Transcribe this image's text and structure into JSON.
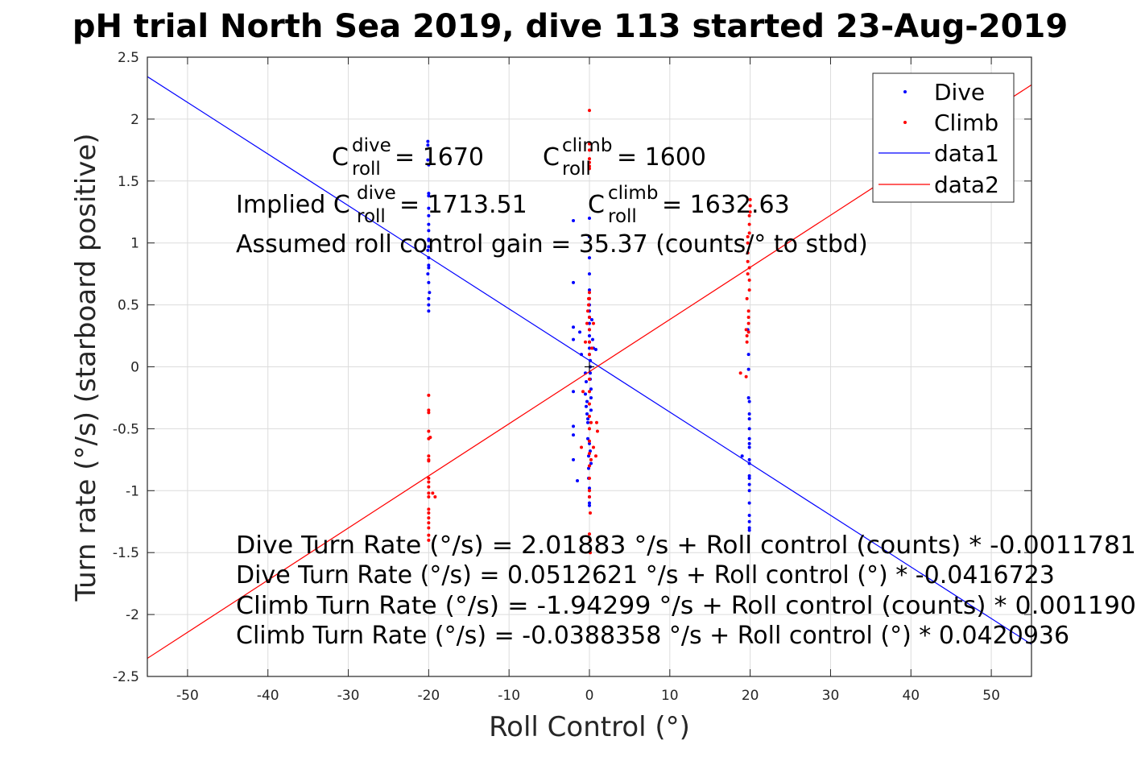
{
  "chart_data": {
    "type": "scatter",
    "title": "pH trial North Sea 2019, dive 113 started 23-Aug-2019",
    "xlabel": "Roll Control (°)",
    "ylabel": "Turn rate (°/s) (starboard positive)",
    "xlim": [
      -55,
      55
    ],
    "ylim": [
      -2.5,
      2.5
    ],
    "xticks": [
      -50,
      -40,
      -30,
      -20,
      -10,
      0,
      10,
      20,
      30,
      40,
      50
    ],
    "yticks": [
      -2.5,
      -2,
      -1.5,
      -1,
      -0.5,
      0,
      0.5,
      1,
      1.5,
      2,
      2.5
    ],
    "grid": true,
    "legend": {
      "placement": "top-right",
      "entries": [
        "Dive",
        "Climb",
        "data1",
        "data2"
      ]
    },
    "colors": {
      "dive": "#0000ff",
      "climb": "#ff0000",
      "axis": "#262626",
      "grid": "#dcdcdc"
    },
    "series": [
      {
        "name": "Dive",
        "marker": "point",
        "color": "#0000ff",
        "x": [
          -20.1,
          -20.1,
          -20.1,
          -20.0,
          -20.0,
          -20.0,
          -20.0,
          -20.0,
          -20.0,
          -20.0,
          -20.0,
          -20.0,
          -20.1,
          -20.0,
          -20.0,
          -20.1,
          -20.0,
          -19.9,
          -20.0,
          -20.0,
          -20.0,
          -20.0,
          -20.0,
          -2.0,
          -2.0,
          -2.0,
          -2.0,
          -2.0,
          -2.0,
          -2.0,
          -2.0,
          -1.5,
          -1.2,
          -1.0,
          -0.5,
          -0.4,
          -0.3,
          -0.2,
          -0.2,
          -0.1,
          -0.1,
          -0.1,
          0.0,
          0.0,
          0.0,
          0.0,
          0.0,
          0.0,
          0.0,
          0.0,
          0.0,
          0.0,
          0.0,
          0.0,
          0.0,
          0.0,
          0.0,
          0.0,
          0.0,
          0.0,
          0.0,
          0.1,
          0.1,
          0.1,
          0.1,
          0.2,
          0.2,
          0.2,
          0.3,
          0.4,
          0.5,
          0.8,
          -0.5,
          -0.4,
          -0.3,
          -0.2,
          0.0,
          0.1,
          0.2,
          19.0,
          19.7,
          19.8,
          19.8,
          19.8,
          19.9,
          19.9,
          19.9,
          19.9,
          19.9,
          19.9,
          19.9,
          19.9,
          19.9,
          19.9,
          19.9,
          19.9,
          19.9,
          19.9,
          19.9,
          19.9,
          19.9,
          19.9
        ],
        "y": [
          1.82,
          1.79,
          1.67,
          1.63,
          1.4,
          1.38,
          1.28,
          1.22,
          1.15,
          1.1,
          1.03,
          0.97,
          0.94,
          0.88,
          0.82,
          0.75,
          0.68,
          0.6,
          0.55,
          0.5,
          0.45,
          1.02,
          0.8,
          1.18,
          0.68,
          0.32,
          0.22,
          -0.2,
          -0.48,
          -0.55,
          -0.75,
          -0.92,
          0.28,
          0.1,
          -0.22,
          -0.32,
          -0.38,
          -0.45,
          -0.58,
          -0.72,
          -0.82,
          -0.9,
          -0.98,
          -1.05,
          -1.1,
          -1.12,
          1.2,
          1.05,
          0.88,
          0.75,
          0.62,
          0.55,
          0.5,
          0.45,
          0.4,
          0.35,
          0.3,
          0.25,
          0.2,
          0.15,
          0.1,
          0.05,
          0.0,
          -0.05,
          -0.1,
          -0.18,
          -0.25,
          -0.35,
          0.38,
          0.22,
          0.15,
          0.14,
          -0.05,
          -0.12,
          -0.28,
          -0.42,
          -0.62,
          -0.68,
          -0.78,
          -0.72,
          0.3,
          0.1,
          -0.02,
          -0.25,
          -0.28,
          -0.38,
          -0.42,
          -0.5,
          -0.58,
          -0.62,
          -0.65,
          -0.75,
          -0.78,
          -0.88,
          -0.9,
          -0.95,
          -1.0,
          -1.25,
          -1.3,
          -1.1,
          -1.32,
          -1.2
        ]
      },
      {
        "name": "Climb",
        "marker": "point",
        "color": "#ff0000",
        "x": [
          -20.0,
          -20.0,
          -20.0,
          -20.0,
          -20.0,
          -20.0,
          -20.0,
          -20.0,
          -20.0,
          -20.0,
          -20.0,
          -20.0,
          -20.0,
          -20.0,
          -20.0,
          -20.0,
          -20.0,
          -20.0,
          -20.0,
          -20.0,
          -19.8,
          -19.5,
          -19.2,
          -1.0,
          -0.8,
          -0.5,
          -0.3,
          -0.2,
          -0.1,
          -0.1,
          0.0,
          0.0,
          0.0,
          0.0,
          0.0,
          0.0,
          0.0,
          0.0,
          0.0,
          0.0,
          0.0,
          0.0,
          0.0,
          0.0,
          0.0,
          0.0,
          0.0,
          0.0,
          0.0,
          0.0,
          0.0,
          0.0,
          0.0,
          0.0,
          0.0,
          0.1,
          0.1,
          0.1,
          0.2,
          0.2,
          0.3,
          0.5,
          0.5,
          0.8,
          0.9,
          1.0,
          18.8,
          19.5,
          19.5,
          19.6,
          19.6,
          19.6,
          19.7,
          19.7,
          19.7,
          19.7,
          19.7,
          19.8,
          19.8,
          19.8,
          19.8,
          19.9,
          19.9,
          19.9,
          19.9,
          19.9,
          19.9,
          20.0,
          20.0,
          20.0
        ],
        "y": [
          -0.23,
          -0.37,
          -0.52,
          -0.58,
          -0.72,
          -0.76,
          -0.9,
          -0.93,
          -0.97,
          -1.02,
          -1.05,
          -1.15,
          -1.18,
          -1.22,
          -1.26,
          -1.3,
          -1.36,
          -1.4,
          -0.35,
          -0.75,
          -0.57,
          -1.02,
          -1.05,
          -0.65,
          -0.2,
          0.2,
          0.35,
          0.45,
          0.5,
          0.55,
          2.07,
          1.8,
          1.75,
          1.68,
          1.65,
          1.62,
          1.6,
          0.6,
          0.55,
          0.4,
          0.3,
          0.2,
          0.1,
          -0.1,
          -0.2,
          -0.3,
          -0.4,
          -0.5,
          -0.6,
          -0.7,
          -0.8,
          -0.9,
          -1.0,
          -1.05,
          -1.35,
          -1.18,
          -1.4,
          -1.5,
          -0.45,
          -0.75,
          0.15,
          0.35,
          -0.65,
          -0.72,
          -0.45,
          -0.52,
          -0.05,
          -0.08,
          0.3,
          0.25,
          0.2,
          0.55,
          0.75,
          0.85,
          0.92,
          1.0,
          1.05,
          0.45,
          0.4,
          0.35,
          0.28,
          0.62,
          0.7,
          0.8,
          1.08,
          1.15,
          1.22,
          1.25,
          1.3,
          1.35
        ]
      },
      {
        "name": "data1",
        "type": "line",
        "color": "#0000ff",
        "x": [
          -55,
          55
        ],
        "y": [
          2.3432,
          -2.2407
        ]
      },
      {
        "name": "data2",
        "type": "line",
        "color": "#ff0000",
        "x": [
          -55,
          55
        ],
        "y": [
          -2.354,
          2.2763
        ]
      }
    ],
    "annotations": {
      "c_dive_prefix": "C",
      "c_dive_sup": "dive",
      "c_dive_sub": "roll",
      "c_dive_value": " = 1670",
      "c_climb_prefix": "C",
      "c_climb_sup": "climb",
      "c_climb_sub": "roll",
      "c_climb_value": " = 1600",
      "implied_prefix": "Implied C",
      "implied_dive_sup": "dive",
      "implied_dive_sub": "roll",
      "implied_dive_value": " = 1713.51",
      "implied_climb_prefix": "C",
      "implied_climb_sup": "climb",
      "implied_climb_sub": "roll",
      "implied_climb_value": " = 1632.63",
      "gain": "Assumed roll control gain = 35.37 (counts/° to stbd)",
      "eq1": "Dive Turn Rate (°/s) = 2.01883 °/s + Roll control (counts) * -0.0011781",
      "eq2": "Dive Turn Rate (°/s) = 0.0512621 °/s + Roll control (°) * -0.0416723",
      "eq3": "Climb Turn Rate (°/s) = -1.94299 °/s + Roll control (counts) * 0.001190",
      "eq4": "Climb Turn Rate (°/s) = -0.0388358 °/s + Roll control (°) * 0.0420936"
    }
  }
}
